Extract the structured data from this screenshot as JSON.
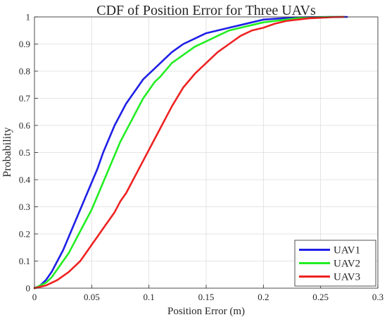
{
  "chart_data": {
    "type": "line",
    "title": "CDF of Position Error for Three UAVs",
    "xlabel": "Position Error (m)",
    "ylabel": "Probability",
    "xlim": [
      0,
      0.3
    ],
    "ylim": [
      0,
      1
    ],
    "xticks": [
      0,
      0.05,
      0.1,
      0.15,
      0.2,
      0.25,
      0.3
    ],
    "yticks": [
      0,
      0.1,
      0.2,
      0.3,
      0.4,
      0.5,
      0.6,
      0.7,
      0.8,
      0.9,
      1
    ],
    "xtick_labels": [
      "0",
      "0.05",
      "0.1",
      "0.15",
      "0.2",
      "0.25",
      "0.3"
    ],
    "ytick_labels": [
      "0",
      "0.1",
      "0.2",
      "0.3",
      "0.4",
      "0.5",
      "0.6",
      "0.7",
      "0.8",
      "0.9",
      "1"
    ],
    "grid": true,
    "legend_position": "bottom-right",
    "series": [
      {
        "name": "UAV1",
        "color": "#1f1fe6",
        "x": [
          0,
          0.005,
          0.01,
          0.015,
          0.02,
          0.025,
          0.03,
          0.035,
          0.04,
          0.045,
          0.05,
          0.055,
          0.06,
          0.065,
          0.07,
          0.075,
          0.08,
          0.085,
          0.09,
          0.095,
          0.1,
          0.105,
          0.11,
          0.12,
          0.13,
          0.14,
          0.15,
          0.16,
          0.17,
          0.18,
          0.19,
          0.2,
          0.21,
          0.22,
          0.23,
          0.24,
          0.25,
          0.26,
          0.27,
          0.273
        ],
        "y": [
          0,
          0.01,
          0.03,
          0.06,
          0.1,
          0.14,
          0.19,
          0.24,
          0.29,
          0.34,
          0.39,
          0.44,
          0.5,
          0.55,
          0.6,
          0.64,
          0.68,
          0.71,
          0.74,
          0.77,
          0.79,
          0.81,
          0.83,
          0.87,
          0.9,
          0.92,
          0.94,
          0.95,
          0.96,
          0.97,
          0.98,
          0.99,
          0.993,
          0.996,
          0.998,
          0.999,
          0.9995,
          1,
          1,
          1
        ]
      },
      {
        "name": "UAV2",
        "color": "#22ee22",
        "x": [
          0,
          0.005,
          0.01,
          0.015,
          0.02,
          0.025,
          0.03,
          0.035,
          0.04,
          0.045,
          0.05,
          0.055,
          0.06,
          0.065,
          0.07,
          0.075,
          0.08,
          0.085,
          0.09,
          0.095,
          0.1,
          0.105,
          0.11,
          0.12,
          0.13,
          0.14,
          0.15,
          0.16,
          0.17,
          0.18,
          0.19,
          0.2,
          0.21,
          0.22,
          0.23,
          0.24,
          0.25,
          0.26,
          0.27
        ],
        "y": [
          0,
          0.01,
          0.02,
          0.04,
          0.07,
          0.1,
          0.13,
          0.17,
          0.21,
          0.25,
          0.29,
          0.34,
          0.39,
          0.44,
          0.49,
          0.54,
          0.58,
          0.62,
          0.66,
          0.7,
          0.73,
          0.76,
          0.78,
          0.83,
          0.86,
          0.89,
          0.91,
          0.93,
          0.95,
          0.96,
          0.97,
          0.98,
          0.985,
          0.99,
          0.995,
          0.998,
          0.999,
          1,
          1
        ]
      },
      {
        "name": "UAV3",
        "color": "#ee2222",
        "x": [
          0,
          0.005,
          0.01,
          0.015,
          0.02,
          0.025,
          0.03,
          0.035,
          0.04,
          0.045,
          0.05,
          0.055,
          0.06,
          0.065,
          0.07,
          0.075,
          0.08,
          0.085,
          0.09,
          0.095,
          0.1,
          0.105,
          0.11,
          0.115,
          0.12,
          0.13,
          0.14,
          0.15,
          0.16,
          0.17,
          0.18,
          0.19,
          0.2,
          0.21,
          0.22,
          0.23,
          0.24,
          0.25,
          0.26,
          0.27
        ],
        "y": [
          0,
          0.005,
          0.01,
          0.02,
          0.03,
          0.045,
          0.06,
          0.08,
          0.1,
          0.13,
          0.16,
          0.19,
          0.22,
          0.25,
          0.28,
          0.32,
          0.35,
          0.39,
          0.43,
          0.47,
          0.51,
          0.55,
          0.59,
          0.63,
          0.67,
          0.74,
          0.79,
          0.83,
          0.87,
          0.9,
          0.93,
          0.95,
          0.96,
          0.975,
          0.985,
          0.99,
          0.995,
          0.997,
          0.999,
          1
        ]
      }
    ]
  }
}
